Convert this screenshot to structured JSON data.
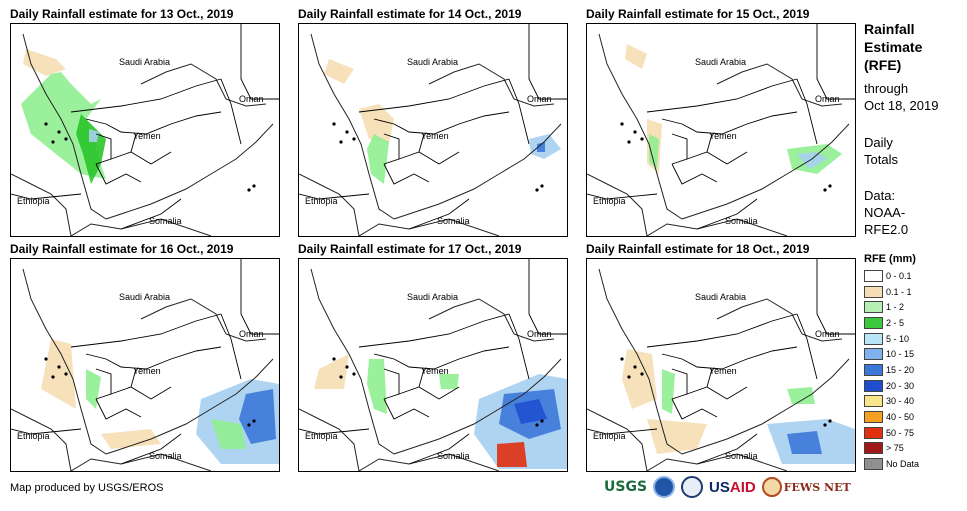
{
  "panels": [
    {
      "title": "Daily Rainfall estimate for 13 Oct., 2019",
      "rain": [
        [
          "#90ee90",
          [
            [
              50,
              48
            ],
            [
              60,
              60
            ],
            [
              70,
              70
            ],
            [
              80,
              80
            ],
            [
              90,
              75
            ],
            [
              75,
              95
            ],
            [
              82,
              110
            ],
            [
              88,
              135
            ],
            [
              95,
              155
            ],
            [
              70,
              150
            ],
            [
              20,
              110
            ],
            [
              10,
              80
            ],
            [
              25,
              65
            ],
            [
              40,
              50
            ]
          ]
        ],
        [
          "#2bc42b",
          [
            [
              70,
              90
            ],
            [
              80,
              100
            ],
            [
              95,
              115
            ],
            [
              90,
              140
            ],
            [
              80,
              160
            ],
            [
              72,
              130
            ],
            [
              65,
              110
            ]
          ]
        ],
        [
          "#a6cff0",
          [
            [
              78,
              105
            ],
            [
              88,
              108
            ],
            [
              86,
              118
            ],
            [
              78,
              118
            ]
          ]
        ],
        [
          "#f5deb3",
          [
            [
              15,
              25
            ],
            [
              45,
              35
            ],
            [
              55,
              45
            ],
            [
              35,
              52
            ],
            [
              12,
              40
            ]
          ]
        ]
      ]
    },
    {
      "title": "Daily Rainfall estimate for 14 Oct., 2019",
      "rain": [
        [
          "#f5deb3",
          [
            [
              60,
              85
            ],
            [
              80,
              80
            ],
            [
              95,
              95
            ],
            [
              90,
              120
            ],
            [
              70,
              115
            ]
          ]
        ],
        [
          "#90ee90",
          [
            [
              75,
              110
            ],
            [
              90,
              118
            ],
            [
              85,
              160
            ],
            [
              72,
              150
            ],
            [
              68,
              125
            ]
          ]
        ],
        [
          "#f5deb3",
          [
            [
              30,
              35
            ],
            [
              55,
              45
            ],
            [
              45,
              60
            ],
            [
              25,
              50
            ]
          ]
        ],
        [
          "#a6cff0",
          [
            [
              230,
              115
            ],
            [
              250,
              110
            ],
            [
              262,
              125
            ],
            [
              245,
              135
            ],
            [
              232,
              130
            ]
          ]
        ],
        [
          "#3c78d8",
          [
            [
              238,
              120
            ],
            [
              246,
              118
            ],
            [
              246,
              128
            ],
            [
              238,
              128
            ]
          ]
        ]
      ]
    },
    {
      "title": "Daily Rainfall estimate for 15 Oct., 2019",
      "rain": [
        [
          "#f5deb3",
          [
            [
              60,
              95
            ],
            [
              75,
              100
            ],
            [
              72,
              150
            ],
            [
              60,
              140
            ]
          ]
        ],
        [
          "#90ee90",
          [
            [
              62,
              110
            ],
            [
              72,
              115
            ],
            [
              70,
              145
            ],
            [
              62,
              138
            ]
          ]
        ],
        [
          "#90ee90",
          [
            [
              200,
              125
            ],
            [
              240,
              120
            ],
            [
              255,
              130
            ],
            [
              230,
              150
            ],
            [
              205,
              145
            ]
          ]
        ],
        [
          "#a6cff0",
          [
            [
              210,
              130
            ],
            [
              230,
              128
            ],
            [
              240,
              135
            ],
            [
              222,
              145
            ]
          ]
        ],
        [
          "#f5deb3",
          [
            [
              40,
              20
            ],
            [
              60,
              30
            ],
            [
              55,
              45
            ],
            [
              38,
              35
            ]
          ]
        ]
      ]
    },
    {
      "title": "Daily Rainfall estimate for 16 Oct., 2019",
      "rain": [
        [
          "#f5deb3",
          [
            [
              40,
              80
            ],
            [
              60,
              85
            ],
            [
              65,
              150
            ],
            [
              30,
              130
            ]
          ]
        ],
        [
          "#90ee90",
          [
            [
              75,
              110
            ],
            [
              90,
              118
            ],
            [
              85,
              150
            ],
            [
              75,
              140
            ]
          ]
        ],
        [
          "#a6cff0",
          [
            [
              190,
              140
            ],
            [
              240,
              120
            ],
            [
              268,
              125
            ],
            [
              268,
              205
            ],
            [
              210,
              205
            ],
            [
              185,
              175
            ]
          ]
        ],
        [
          "#3c78d8",
          [
            [
              235,
              135
            ],
            [
              262,
              130
            ],
            [
              265,
              180
            ],
            [
              240,
              185
            ],
            [
              228,
              160
            ]
          ]
        ],
        [
          "#90ee90",
          [
            [
              200,
              160
            ],
            [
              230,
              165
            ],
            [
              235,
              190
            ],
            [
              210,
              190
            ]
          ]
        ],
        [
          "#f5deb3",
          [
            [
              90,
              175
            ],
            [
              140,
              170
            ],
            [
              150,
              185
            ],
            [
              100,
              190
            ]
          ]
        ]
      ]
    },
    {
      "title": "Daily Rainfall estimate for 17 Oct., 2019",
      "rain": [
        [
          "#90ee90",
          [
            [
              70,
              100
            ],
            [
              85,
              100
            ],
            [
              88,
              155
            ],
            [
              75,
              150
            ],
            [
              68,
              125
            ]
          ]
        ],
        [
          "#f5deb3",
          [
            [
              20,
              110
            ],
            [
              50,
              95
            ],
            [
              45,
              130
            ],
            [
              15,
              130
            ]
          ]
        ],
        [
          "#a6cff0",
          [
            [
              180,
              140
            ],
            [
              240,
              115
            ],
            [
              268,
              120
            ],
            [
              268,
              210
            ],
            [
              200,
              210
            ],
            [
              175,
              175
            ]
          ]
        ],
        [
          "#3c78d8",
          [
            [
              205,
              135
            ],
            [
              255,
              130
            ],
            [
              262,
              170
            ],
            [
              230,
              180
            ],
            [
              200,
              165
            ]
          ]
        ],
        [
          "#1f4fcf",
          [
            [
              215,
              145
            ],
            [
              240,
              140
            ],
            [
              248,
              160
            ],
            [
              222,
              165
            ]
          ]
        ],
        [
          "#e03010",
          [
            [
              198,
              185
            ],
            [
              225,
              183
            ],
            [
              228,
              208
            ],
            [
              198,
              208
            ]
          ]
        ],
        [
          "#90ee90",
          [
            [
              140,
              115
            ],
            [
              160,
              115
            ],
            [
              158,
              130
            ],
            [
              142,
              130
            ]
          ]
        ]
      ]
    },
    {
      "title": "Daily Rainfall estimate for 18 Oct., 2019",
      "rain": [
        [
          "#f5deb3",
          [
            [
              40,
              90
            ],
            [
              65,
              95
            ],
            [
              70,
              140
            ],
            [
              45,
              150
            ],
            [
              35,
              120
            ]
          ]
        ],
        [
          "#90ee90",
          [
            [
              75,
              110
            ],
            [
              88,
              115
            ],
            [
              85,
              155
            ],
            [
              75,
              150
            ]
          ]
        ],
        [
          "#a6cff0",
          [
            [
              180,
              165
            ],
            [
              240,
              160
            ],
            [
              268,
              170
            ],
            [
              268,
              205
            ],
            [
              195,
              205
            ]
          ]
        ],
        [
          "#3c78d8",
          [
            [
              200,
              175
            ],
            [
              230,
              172
            ],
            [
              235,
              195
            ],
            [
              205,
              195
            ]
          ]
        ],
        [
          "#f5deb3",
          [
            [
              60,
              160
            ],
            [
              120,
              165
            ],
            [
              110,
              190
            ],
            [
              70,
              195
            ]
          ]
        ],
        [
          "#90ee90",
          [
            [
              200,
              130
            ],
            [
              225,
              128
            ],
            [
              228,
              145
            ],
            [
              205,
              145
            ]
          ]
        ]
      ]
    }
  ],
  "countries": {
    "saudi_arabia": "Saudi Arabia",
    "oman": "Oman",
    "yemen": "Yemen",
    "ethiopia": "Ethiopia",
    "somalia": "Somalia"
  },
  "side": {
    "title1": "Rainfall",
    "title2": "Estimate",
    "title3": "(RFE)",
    "through": "through",
    "date": "Oct 18, 2019",
    "daily": "Daily",
    "totals": "Totals",
    "data_label": "Data:",
    "data_src1": "NOAA-",
    "data_src2": "RFE2.0"
  },
  "legend": {
    "title": "RFE (mm)",
    "items": [
      {
        "label": "0 - 0.1",
        "color": "#ffffff"
      },
      {
        "label": "0.1 - 1",
        "color": "#f5deb3"
      },
      {
        "label": "1 - 2",
        "color": "#b4f0b4"
      },
      {
        "label": "2 - 5",
        "color": "#3cc83c"
      },
      {
        "label": "5 - 10",
        "color": "#b8e6f6"
      },
      {
        "label": "10 - 15",
        "color": "#7fb2ee"
      },
      {
        "label": "15 - 20",
        "color": "#3c78d8"
      },
      {
        "label": "20 - 30",
        "color": "#1f4fcf"
      },
      {
        "label": "30 - 40",
        "color": "#fbe58a"
      },
      {
        "label": "40 - 50",
        "color": "#f5a020"
      },
      {
        "label": "50 - 75",
        "color": "#e03010"
      },
      {
        "label": "> 75",
        "color": "#a01818"
      },
      {
        "label": "No Data",
        "color": "#909090"
      }
    ]
  },
  "footer": "Map produced by USGS/EROS",
  "logos": {
    "usgs": "USGS",
    "usaid_a": "US",
    "usaid_b": "AID",
    "fews": "FEWS NET"
  }
}
